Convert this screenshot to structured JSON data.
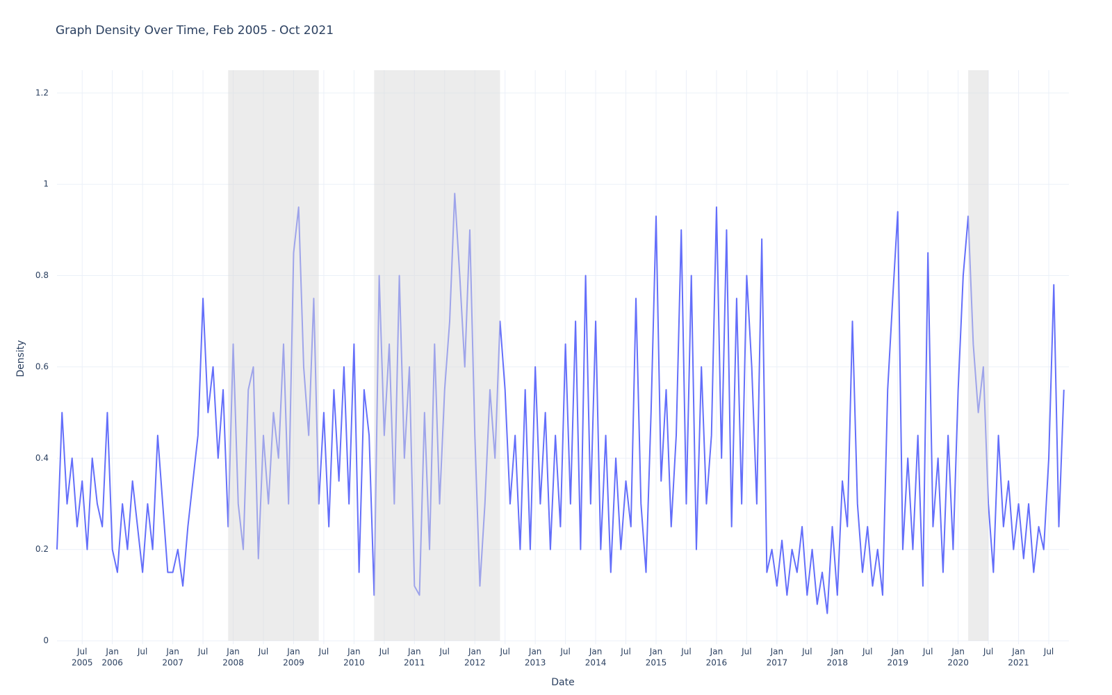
{
  "chart_data": {
    "type": "line",
    "title": "Graph Density Over Time, Feb 2005 - Oct 2021",
    "x_label": "Date",
    "y_label": "Density",
    "x": [
      "2005-02",
      "2005-03",
      "2005-04",
      "2005-05",
      "2005-06",
      "2005-07",
      "2005-08",
      "2005-09",
      "2005-10",
      "2005-11",
      "2005-12",
      "2006-01",
      "2006-02",
      "2006-03",
      "2006-04",
      "2006-05",
      "2006-06",
      "2006-07",
      "2006-08",
      "2006-09",
      "2006-10",
      "2006-11",
      "2006-12",
      "2007-01",
      "2007-02",
      "2007-03",
      "2007-04",
      "2007-05",
      "2007-06",
      "2007-07",
      "2007-08",
      "2007-09",
      "2007-10",
      "2007-11",
      "2007-12",
      "2008-01",
      "2008-02",
      "2008-03",
      "2008-04",
      "2008-05",
      "2008-06",
      "2008-07",
      "2008-08",
      "2008-09",
      "2008-10",
      "2008-11",
      "2008-12",
      "2009-01",
      "2009-02",
      "2009-03",
      "2009-04",
      "2009-05",
      "2009-06",
      "2009-07",
      "2009-08",
      "2009-09",
      "2009-10",
      "2009-11",
      "2009-12",
      "2010-01",
      "2010-02",
      "2010-03",
      "2010-04",
      "2010-05",
      "2010-06",
      "2010-07",
      "2010-08",
      "2010-09",
      "2010-10",
      "2010-11",
      "2010-12",
      "2011-01",
      "2011-02",
      "2011-03",
      "2011-04",
      "2011-05",
      "2011-06",
      "2011-07",
      "2011-08",
      "2011-09",
      "2011-10",
      "2011-11",
      "2011-12",
      "2012-01",
      "2012-02",
      "2012-03",
      "2012-04",
      "2012-05",
      "2012-06",
      "2012-07",
      "2012-08",
      "2012-09",
      "2012-10",
      "2012-11",
      "2012-12",
      "2013-01",
      "2013-02",
      "2013-03",
      "2013-04",
      "2013-05",
      "2013-06",
      "2013-07",
      "2013-08",
      "2013-09",
      "2013-10",
      "2013-11",
      "2013-12",
      "2014-01",
      "2014-02",
      "2014-03",
      "2014-04",
      "2014-05",
      "2014-06",
      "2014-07",
      "2014-08",
      "2014-09",
      "2014-10",
      "2014-11",
      "2014-12",
      "2015-01",
      "2015-02",
      "2015-03",
      "2015-04",
      "2015-05",
      "2015-06",
      "2015-07",
      "2015-08",
      "2015-09",
      "2015-10",
      "2015-11",
      "2015-12",
      "2016-01",
      "2016-02",
      "2016-03",
      "2016-04",
      "2016-05",
      "2016-06",
      "2016-07",
      "2016-08",
      "2016-09",
      "2016-10",
      "2016-11",
      "2016-12",
      "2017-01",
      "2017-02",
      "2017-03",
      "2017-04",
      "2017-05",
      "2017-06",
      "2017-07",
      "2017-08",
      "2017-09",
      "2017-10",
      "2017-11",
      "2017-12",
      "2018-01",
      "2018-02",
      "2018-03",
      "2018-04",
      "2018-05",
      "2018-06",
      "2018-07",
      "2018-08",
      "2018-09",
      "2018-10",
      "2018-11",
      "2018-12",
      "2019-01",
      "2019-02",
      "2019-03",
      "2019-04",
      "2019-05",
      "2019-06",
      "2019-07",
      "2019-08",
      "2019-09",
      "2019-10",
      "2019-11",
      "2019-12",
      "2020-01",
      "2020-02",
      "2020-03",
      "2020-04",
      "2020-05",
      "2020-06",
      "2020-07",
      "2020-08",
      "2020-09",
      "2020-10",
      "2020-11",
      "2020-12",
      "2021-01",
      "2021-02",
      "2021-03",
      "2021-04",
      "2021-05",
      "2021-06",
      "2021-07",
      "2021-08",
      "2021-09",
      "2021-10"
    ],
    "values": [
      0.2,
      0.5,
      0.3,
      0.4,
      0.25,
      0.35,
      0.2,
      0.4,
      0.3,
      0.25,
      0.5,
      0.2,
      0.15,
      0.3,
      0.2,
      0.35,
      0.25,
      0.15,
      0.3,
      0.2,
      0.45,
      0.3,
      0.15,
      0.15,
      0.2,
      0.12,
      0.25,
      0.35,
      0.45,
      0.75,
      0.5,
      0.6,
      0.4,
      0.55,
      0.25,
      0.65,
      0.3,
      0.2,
      0.55,
      0.6,
      0.18,
      0.45,
      0.3,
      0.5,
      0.4,
      0.65,
      0.3,
      0.85,
      0.95,
      0.6,
      0.45,
      0.75,
      0.3,
      0.5,
      0.25,
      0.55,
      0.35,
      0.6,
      0.3,
      0.65,
      0.15,
      0.55,
      0.45,
      0.1,
      0.8,
      0.45,
      0.65,
      0.3,
      0.8,
      0.4,
      0.6,
      0.12,
      0.1,
      0.5,
      0.2,
      0.65,
      0.3,
      0.55,
      0.7,
      0.98,
      0.8,
      0.6,
      0.9,
      0.45,
      0.12,
      0.3,
      0.55,
      0.4,
      0.7,
      0.55,
      0.3,
      0.45,
      0.2,
      0.55,
      0.2,
      0.6,
      0.3,
      0.5,
      0.2,
      0.45,
      0.25,
      0.65,
      0.3,
      0.7,
      0.2,
      0.8,
      0.3,
      0.7,
      0.2,
      0.45,
      0.15,
      0.4,
      0.2,
      0.35,
      0.25,
      0.75,
      0.3,
      0.15,
      0.5,
      0.93,
      0.35,
      0.55,
      0.25,
      0.45,
      0.9,
      0.3,
      0.8,
      0.2,
      0.6,
      0.3,
      0.45,
      0.95,
      0.4,
      0.9,
      0.25,
      0.75,
      0.3,
      0.8,
      0.6,
      0.3,
      0.88,
      0.15,
      0.2,
      0.12,
      0.22,
      0.1,
      0.2,
      0.15,
      0.25,
      0.1,
      0.2,
      0.08,
      0.15,
      0.06,
      0.25,
      0.1,
      0.35,
      0.25,
      0.7,
      0.3,
      0.15,
      0.25,
      0.12,
      0.2,
      0.1,
      0.55,
      0.75,
      0.94,
      0.2,
      0.4,
      0.2,
      0.45,
      0.12,
      0.85,
      0.25,
      0.4,
      0.15,
      0.45,
      0.2,
      0.55,
      0.8,
      0.93,
      0.65,
      0.5,
      0.6,
      0.3,
      0.15,
      0.45,
      0.25,
      0.35,
      0.2,
      0.3,
      0.18,
      0.3,
      0.15,
      0.25,
      0.2,
      0.4,
      0.78,
      0.25,
      0.55
    ],
    "color": "#636efa",
    "shaded_periods": [
      {
        "start": "2007-12",
        "end": "2009-06"
      },
      {
        "start": "2010-05",
        "end": "2012-06"
      },
      {
        "start": "2020-03",
        "end": "2020-07"
      }
    ],
    "shade_color": "#d9d9d9",
    "xlim": [
      "2005-02",
      "2021-11"
    ],
    "xticks": [
      {
        "value": "2005-07",
        "label": "Jul",
        "year": "2005"
      },
      {
        "value": "2006-01",
        "label": "Jan",
        "year": "2006"
      },
      {
        "value": "2006-07",
        "label": "Jul"
      },
      {
        "value": "2007-01",
        "label": "Jan",
        "year": "2007"
      },
      {
        "value": "2007-07",
        "label": "Jul"
      },
      {
        "value": "2008-01",
        "label": "Jan",
        "year": "2008"
      },
      {
        "value": "2008-07",
        "label": "Jul"
      },
      {
        "value": "2009-01",
        "label": "Jan",
        "year": "2009"
      },
      {
        "value": "2009-07",
        "label": "Jul"
      },
      {
        "value": "2010-01",
        "label": "Jan",
        "year": "2010"
      },
      {
        "value": "2010-07",
        "label": "Jul"
      },
      {
        "value": "2011-01",
        "label": "Jan",
        "year": "2011"
      },
      {
        "value": "2011-07",
        "label": "Jul"
      },
      {
        "value": "2012-01",
        "label": "Jan",
        "year": "2012"
      },
      {
        "value": "2012-07",
        "label": "Jul"
      },
      {
        "value": "2013-01",
        "label": "Jan",
        "year": "2013"
      },
      {
        "value": "2013-07",
        "label": "Jul"
      },
      {
        "value": "2014-01",
        "label": "Jan",
        "year": "2014"
      },
      {
        "value": "2014-07",
        "label": "Jul"
      },
      {
        "value": "2015-01",
        "label": "Jan",
        "year": "2015"
      },
      {
        "value": "2015-07",
        "label": "Jul"
      },
      {
        "value": "2016-01",
        "label": "Jan",
        "year": "2016"
      },
      {
        "value": "2016-07",
        "label": "Jul"
      },
      {
        "value": "2017-01",
        "label": "Jan",
        "year": "2017"
      },
      {
        "value": "2017-07",
        "label": "Jul"
      },
      {
        "value": "2018-01",
        "label": "Jan",
        "year": "2018"
      },
      {
        "value": "2018-07",
        "label": "Jul"
      },
      {
        "value": "2019-01",
        "label": "Jan",
        "year": "2019"
      },
      {
        "value": "2019-07",
        "label": "Jul"
      },
      {
        "value": "2020-01",
        "label": "Jan",
        "year": "2020"
      },
      {
        "value": "2020-07",
        "label": "Jul"
      },
      {
        "value": "2021-01",
        "label": "Jan",
        "year": "2021"
      },
      {
        "value": "2021-07",
        "label": "Jul"
      }
    ],
    "ylim": [
      0,
      1.25
    ],
    "yticks": [
      0,
      0.2,
      0.4,
      0.6,
      0.8,
      1,
      1.2
    ],
    "grid": true
  }
}
